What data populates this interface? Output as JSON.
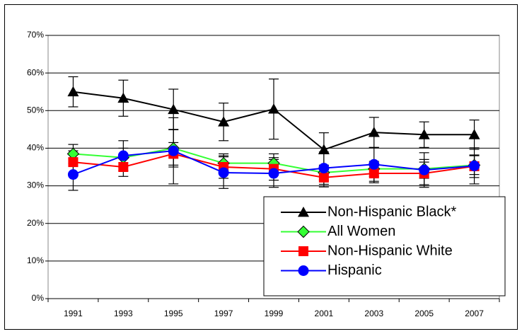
{
  "chart_data": {
    "type": "line",
    "categories": [
      "1991",
      "1993",
      "1995",
      "1997",
      "1999",
      "2001",
      "2003",
      "2005",
      "2007"
    ],
    "series": [
      {
        "name": "Non-Hispanic Black*",
        "color": "#000000",
        "marker": "triangle",
        "values": [
          55,
          53.3,
          50.3,
          47,
          50.4,
          39.6,
          44.2,
          43.6,
          43.6
        ],
        "errors": [
          4,
          4.8,
          5.4,
          5,
          8,
          4.5,
          4,
          3.4,
          3.9
        ]
      },
      {
        "name": "All Women",
        "color": "#33ff33",
        "marker": "diamond",
        "values": [
          38.5,
          37.5,
          40,
          36,
          36,
          33.5,
          34.5,
          34.5,
          35.5
        ],
        "errors": [
          2.5,
          2.5,
          5,
          2.5,
          2.5,
          2,
          2,
          2.5,
          2.5
        ]
      },
      {
        "name": "Non-Hispanic White",
        "color": "#ff0000",
        "marker": "square",
        "values": [
          36.3,
          35,
          38.5,
          35,
          34.5,
          32.2,
          33.3,
          33.3,
          35.2
        ],
        "errors": [
          3,
          2.5,
          3,
          3,
          3,
          2.5,
          2.5,
          3,
          3
        ]
      },
      {
        "name": "Hispanic",
        "color": "#0000ff",
        "marker": "circle",
        "values": [
          33,
          38,
          39.3,
          33.5,
          33.3,
          34.7,
          35.7,
          34.2,
          35.3
        ],
        "errors": [
          4.2,
          4,
          8.8,
          4.2,
          3.7,
          4.3,
          4.5,
          4.6,
          4.8
        ]
      }
    ],
    "ylim": [
      0,
      70
    ],
    "yticks": [
      {
        "value": 0,
        "label": "0%"
      },
      {
        "value": 10,
        "label": "10%"
      },
      {
        "value": 20,
        "label": "20%"
      },
      {
        "value": 30,
        "label": "30%"
      },
      {
        "value": 40,
        "label": "40%"
      },
      {
        "value": 50,
        "label": "50%"
      },
      {
        "value": 60,
        "label": "60%"
      },
      {
        "value": 70,
        "label": "70%"
      }
    ],
    "grid": true,
    "legend": "lower-right"
  }
}
